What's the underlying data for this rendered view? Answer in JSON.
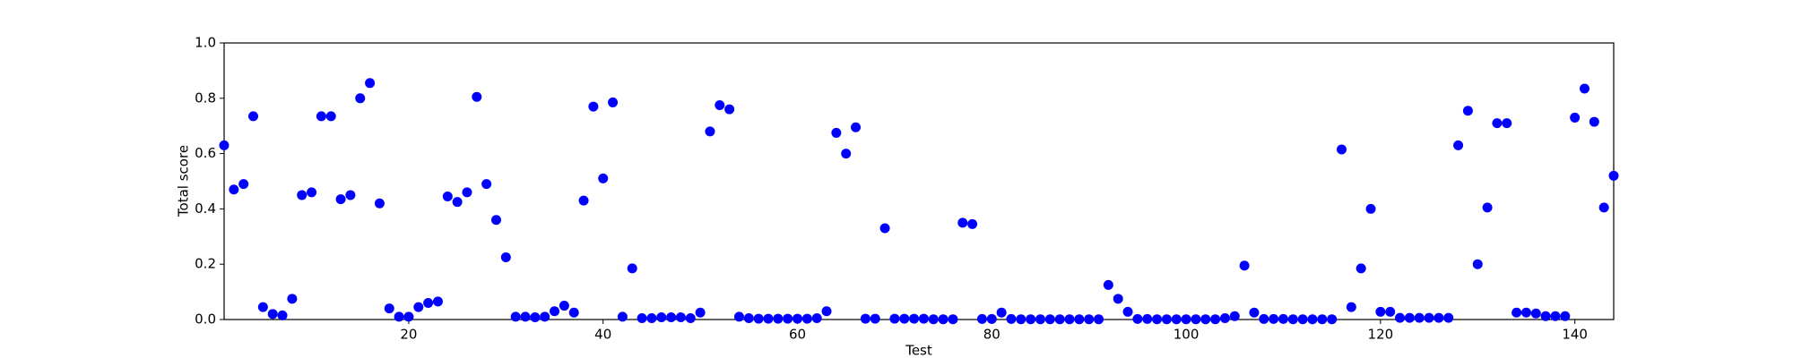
{
  "chart_data": {
    "type": "scatter",
    "xlabel": "Test",
    "ylabel": "Total score",
    "color": "#0000ff",
    "x": [
      1,
      2,
      3,
      4,
      5,
      6,
      7,
      8,
      9,
      10,
      11,
      12,
      13,
      14,
      15,
      16,
      17,
      18,
      19,
      20,
      21,
      22,
      23,
      24,
      25,
      26,
      27,
      28,
      29,
      30,
      31,
      32,
      33,
      34,
      35,
      36,
      37,
      38,
      39,
      40,
      41,
      42,
      43,
      44,
      45,
      46,
      47,
      48,
      49,
      50,
      51,
      52,
      53,
      54,
      55,
      56,
      57,
      58,
      59,
      60,
      61,
      62,
      63,
      64,
      65,
      66,
      67,
      68,
      69,
      70,
      71,
      72,
      73,
      74,
      75,
      76,
      77,
      78,
      79,
      80,
      81,
      82,
      83,
      84,
      85,
      86,
      87,
      88,
      89,
      90,
      91,
      92,
      93,
      94,
      95,
      96,
      97,
      98,
      99,
      100,
      101,
      102,
      103,
      104,
      105,
      106,
      107,
      108,
      109,
      110,
      111,
      112,
      113,
      114,
      115,
      116,
      117,
      118,
      119,
      120,
      121,
      122,
      123,
      124,
      125,
      126,
      127,
      128,
      129,
      130,
      131,
      132,
      133,
      134,
      135,
      136,
      137,
      138,
      139,
      140,
      141,
      142,
      143,
      144
    ],
    "values": [
      0.63,
      0.47,
      0.49,
      0.735,
      0.045,
      0.02,
      0.015,
      0.075,
      0.45,
      0.46,
      0.735,
      0.735,
      0.435,
      0.45,
      0.8,
      0.855,
      0.42,
      0.04,
      0.01,
      0.01,
      0.045,
      0.06,
      0.065,
      0.445,
      0.425,
      0.46,
      0.805,
      0.49,
      0.36,
      0.225,
      0.01,
      0.01,
      0.008,
      0.01,
      0.03,
      0.05,
      0.025,
      0.43,
      0.77,
      0.51,
      0.785,
      0.01,
      0.185,
      0.005,
      0.005,
      0.008,
      0.008,
      0.008,
      0.005,
      0.025,
      0.68,
      0.775,
      0.76,
      0.01,
      0.005,
      0.003,
      0.003,
      0.003,
      0.003,
      0.003,
      0.003,
      0.005,
      0.03,
      0.675,
      0.6,
      0.695,
      0.003,
      0.003,
      0.33,
      0.003,
      0.003,
      0.003,
      0.003,
      0.001,
      0.001,
      0.001,
      0.35,
      0.345,
      0.002,
      0.002,
      0.025,
      0.002,
      0.001,
      0.001,
      0.001,
      0.001,
      0.001,
      0.001,
      0.001,
      0.001,
      0.001,
      0.125,
      0.075,
      0.028,
      0.002,
      0.002,
      0.001,
      0.001,
      0.001,
      0.001,
      0.001,
      0.001,
      0.001,
      0.005,
      0.012,
      0.195,
      0.025,
      0.002,
      0.002,
      0.002,
      0.001,
      0.001,
      0.001,
      0.001,
      0.001,
      0.615,
      0.045,
      0.185,
      0.4,
      0.028,
      0.028,
      0.006,
      0.006,
      0.006,
      0.006,
      0.006,
      0.006,
      0.63,
      0.755,
      0.2,
      0.405,
      0.71,
      0.71,
      0.025,
      0.025,
      0.022,
      0.012,
      0.012,
      0.012,
      0.73,
      0.835,
      0.715,
      0.405,
      0.52
    ],
    "xlim": [
      1,
      144
    ],
    "ylim": [
      0,
      1
    ],
    "xticks": [
      20,
      40,
      60,
      80,
      100,
      120,
      140
    ],
    "yticks": [
      {
        "value": 0,
        "label": "0.0"
      },
      0.2,
      0.4,
      0.6,
      0.8,
      {
        "value": 1,
        "label": "1.0"
      }
    ],
    "grid": false
  }
}
